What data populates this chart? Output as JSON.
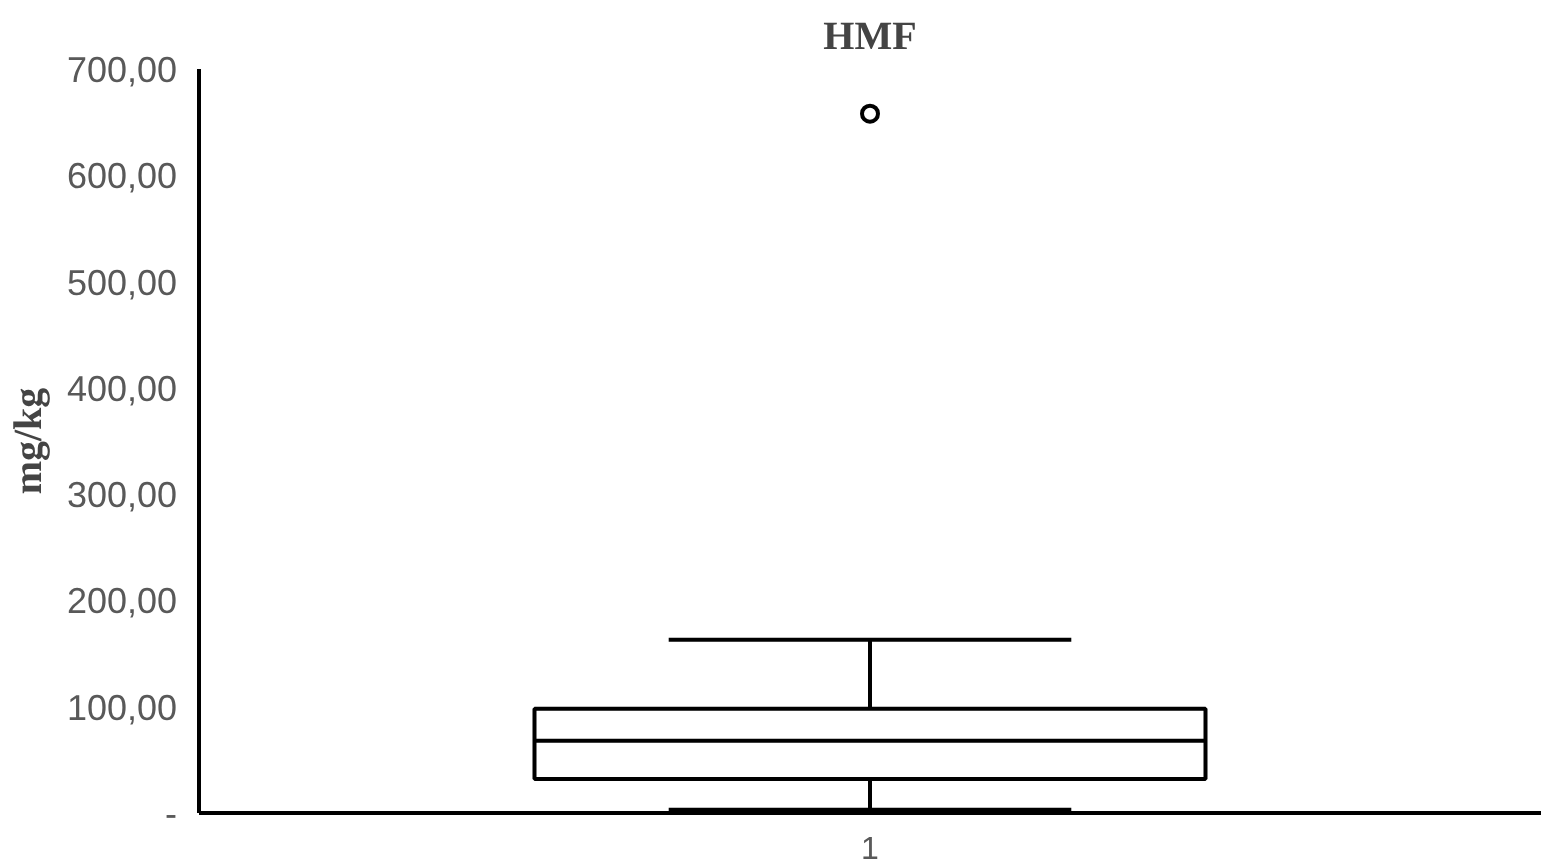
{
  "chart_data": {
    "type": "box",
    "title": "HMF",
    "ylabel": "mg/kg",
    "categories": [
      "1"
    ],
    "boxes": [
      {
        "low": 3,
        "q1": 32,
        "median": 68,
        "q3": 98,
        "high": 163,
        "outliers": [
          658
        ]
      }
    ],
    "color": "#000000",
    "ylim": [
      0,
      700
    ],
    "yticks": [
      {
        "value": 0,
        "label": "-"
      },
      {
        "value": 100,
        "label": "100,00"
      },
      {
        "value": 200,
        "label": "200,00"
      },
      {
        "value": 300,
        "label": "300,00"
      },
      {
        "value": 400,
        "label": "400,00"
      },
      {
        "value": 500,
        "label": "500,00"
      },
      {
        "value": 600,
        "label": "600,00"
      },
      {
        "value": 700,
        "label": "700,00"
      }
    ],
    "grid": false
  }
}
